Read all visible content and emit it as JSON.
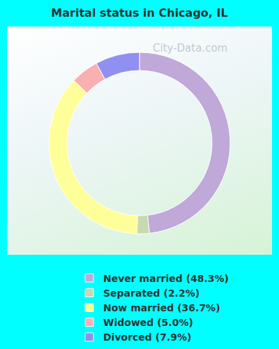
{
  "chart_data": {
    "type": "pie",
    "title": "Marital status in Chicago, IL",
    "categories": [
      "Never married (48.3%)",
      "Separated (2.2%)",
      "Now married (36.7%)",
      "Widowed (5.0%)",
      "Divorced (7.9%)"
    ],
    "values": [
      48.3,
      2.2,
      36.7,
      5.0,
      7.9
    ],
    "colors": [
      "#c0a8d8",
      "#c8d8b0",
      "#ffff99",
      "#f8b0b0",
      "#9090f0"
    ],
    "legend": "bottom",
    "annotations": [
      "City-Data.com"
    ]
  }
}
